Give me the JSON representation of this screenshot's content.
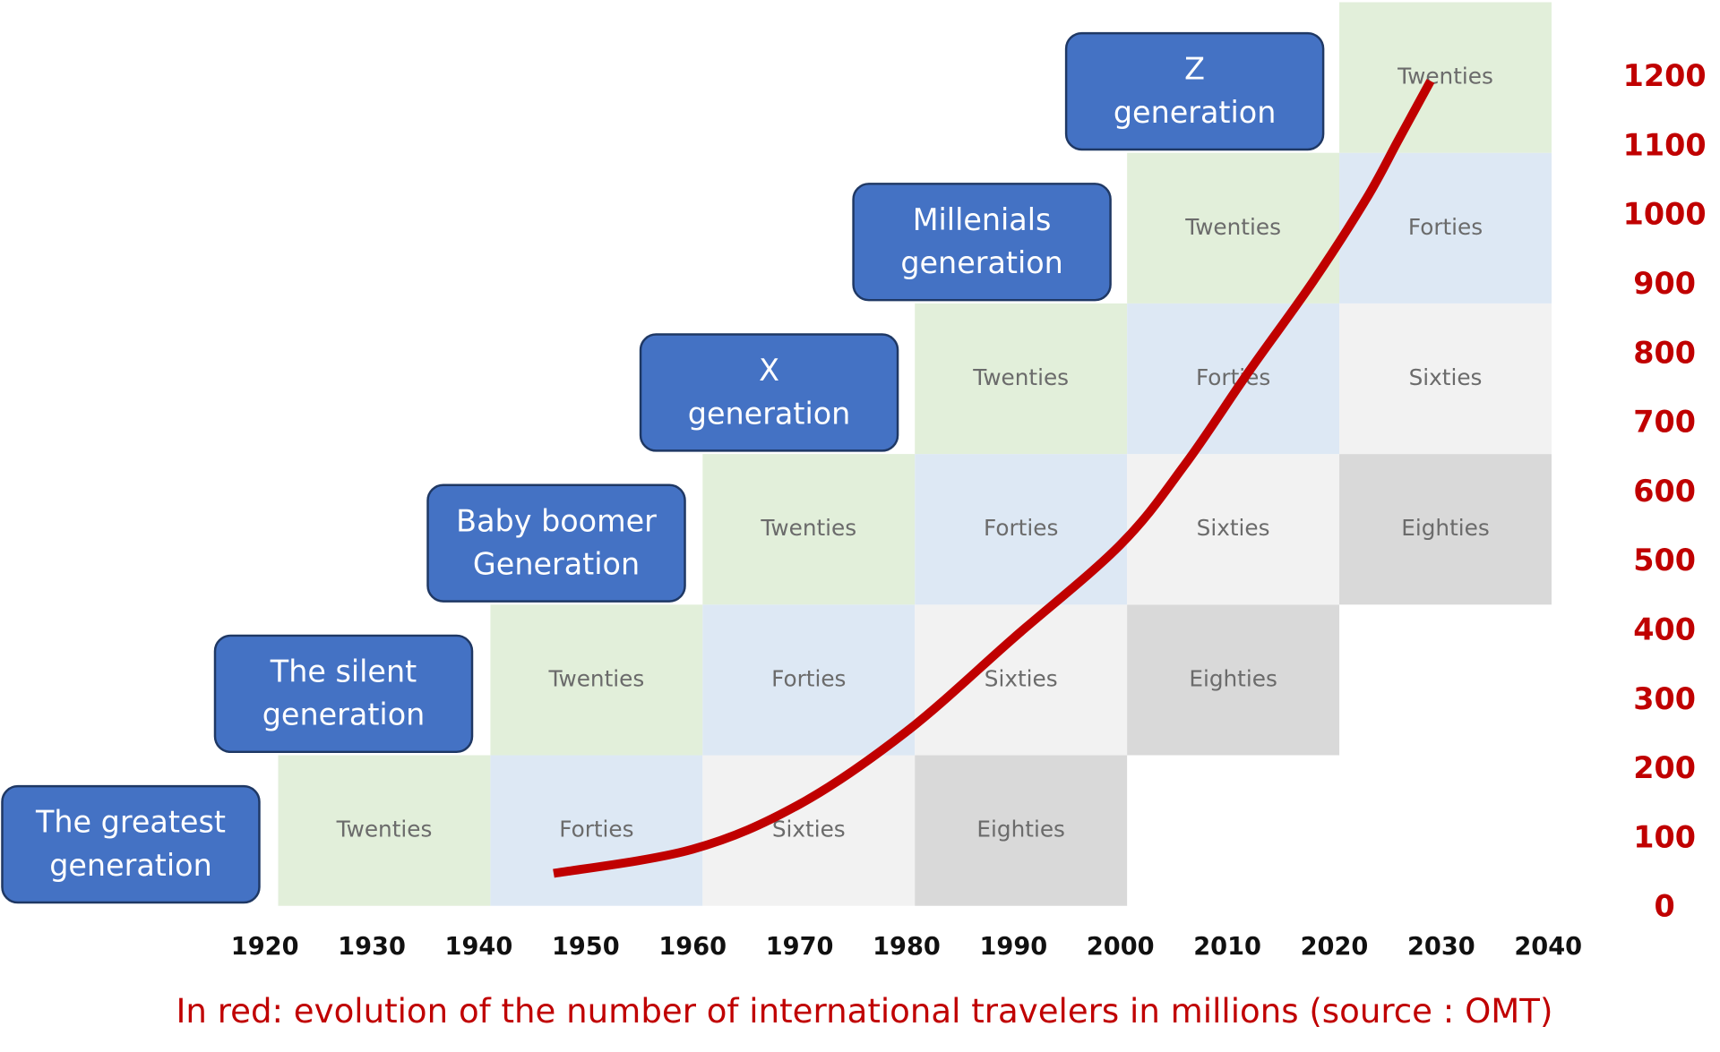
{
  "chart_data": {
    "type": "line",
    "x": [
      1947,
      1960,
      1970,
      1980,
      1990,
      2000,
      2006,
      2012,
      2018,
      2023,
      2026,
      2029
    ],
    "values": [
      50,
      85,
      150,
      255,
      390,
      525,
      640,
      775,
      905,
      1025,
      1110,
      1195
    ],
    "color": "#c00000",
    "xlim": [
      1920,
      2040
    ],
    "xticks": [
      1920,
      1930,
      1940,
      1950,
      1960,
      1970,
      1980,
      1990,
      2000,
      2010,
      2020,
      2030,
      2040
    ],
    "ylim": [
      0,
      1200
    ],
    "yticks": [
      0,
      100,
      200,
      300,
      400,
      500,
      600,
      700,
      800,
      900,
      1000,
      1100,
      1200
    ],
    "y_axis_side": "right",
    "caption": "In red: evolution of the number of international travelers in millions (source : OMT)"
  },
  "stage_colors": {
    "Twenties": "#e2efda",
    "Forties": "#dde8f4",
    "Sixties": "#f2f2f2",
    "Eighties": "#d9d9d9"
  },
  "generations": [
    {
      "label": [
        "The greatest",
        "generation"
      ],
      "stages": [
        "Twenties",
        "Forties",
        "Sixties",
        "Eighties"
      ]
    },
    {
      "label": [
        "The silent",
        "generation"
      ],
      "stages": [
        "Twenties",
        "Forties",
        "Sixties",
        "Eighties"
      ]
    },
    {
      "label": [
        "Baby boomer",
        "Generation"
      ],
      "stages": [
        "Twenties",
        "Forties",
        "Sixties",
        "Eighties"
      ]
    },
    {
      "label": [
        "X",
        "generation"
      ],
      "stages": [
        "Twenties",
        "Forties",
        "Sixties"
      ]
    },
    {
      "label": [
        "Millenials",
        "generation"
      ],
      "stages": [
        "Twenties",
        "Forties"
      ]
    },
    {
      "label": [
        "Z",
        "generation"
      ],
      "stages": [
        "Twenties"
      ]
    }
  ]
}
